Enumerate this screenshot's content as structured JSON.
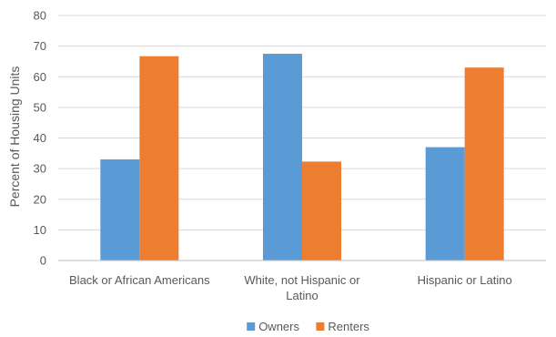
{
  "chart_data": {
    "type": "bar",
    "categories": [
      [
        "Black or African Americans"
      ],
      [
        "White, not Hispanic or",
        "Latino"
      ],
      [
        "Hispanic or Latino"
      ]
    ],
    "series": [
      {
        "name": "Owners",
        "values": [
          33,
          67.5,
          37
        ],
        "color": "#5b9bd5"
      },
      {
        "name": "Renters",
        "values": [
          66.7,
          32.3,
          63
        ],
        "color": "#ed7d31"
      }
    ],
    "title": "",
    "xlabel": "",
    "ylabel": "Percent of Housing Units",
    "ylim": [
      0,
      80
    ],
    "yticks": [
      0,
      10,
      20,
      30,
      40,
      50,
      60,
      70,
      80
    ],
    "grid": true,
    "legend_position": "bottom"
  }
}
